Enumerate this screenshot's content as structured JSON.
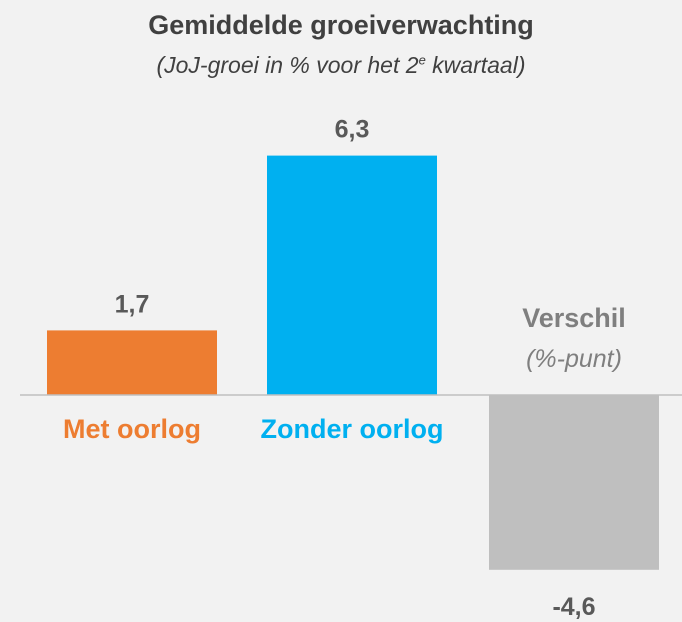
{
  "chart_data": {
    "type": "bar",
    "title": "Gemiddelde groeiverwachting",
    "subtitle_pre": "(JoJ-groei in % voor het 2",
    "subtitle_sup": "e",
    "subtitle_post": " kwartaal)",
    "categories": [
      "Met oorlog",
      "Zonder oorlog",
      "Verschil"
    ],
    "category_sublabels": [
      "",
      "",
      "(%-punt)"
    ],
    "values": [
      1.7,
      6.3,
      -4.6
    ],
    "value_labels": [
      "1,7",
      "6,3",
      "-4,6"
    ],
    "colors": [
      "#ED7D31",
      "#00B0F0",
      "#BFBFBF"
    ],
    "label_colors": [
      "#ED7D31",
      "#00B0F0",
      "#7F7F7F"
    ],
    "xlabel": "",
    "ylabel": "",
    "grid": false
  }
}
